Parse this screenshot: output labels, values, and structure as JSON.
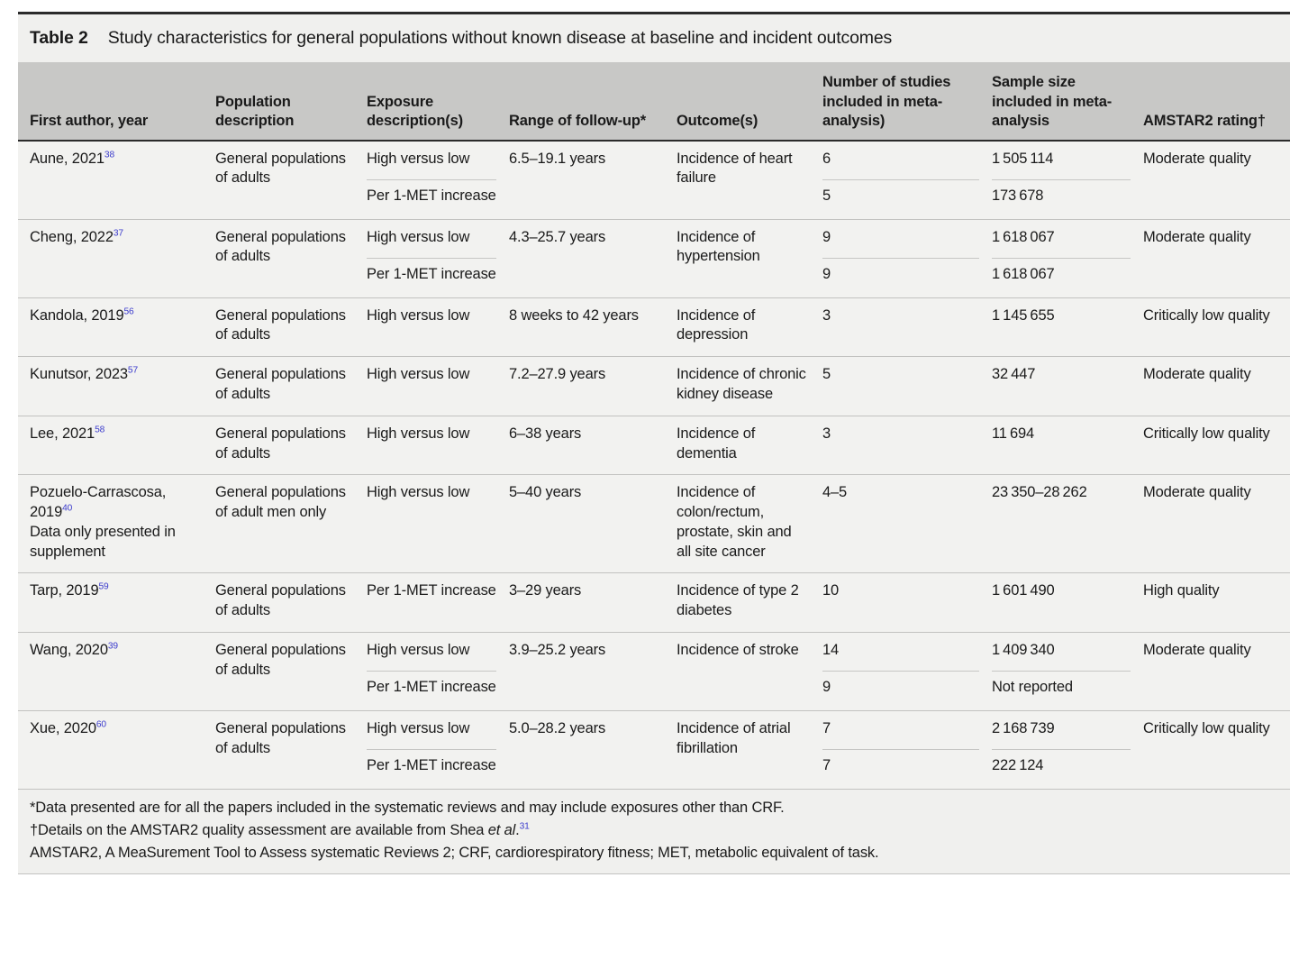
{
  "colors": {
    "text": "#1a1a1a",
    "reference_link": "#3c3ccc",
    "caption_background": "#f0f0ee",
    "header_background": "#c8c8c6",
    "row_background": "#f2f2f0"
  },
  "table": {
    "label": "Table 2",
    "title": "Study characteristics for general populations without known disease at baseline and incident outcomes",
    "columns": [
      "First author, year",
      "Population description",
      "Exposure description(s)",
      "Range of follow-up*",
      "Outcome(s)",
      "Number of studies included in meta-analysis)",
      "Sample size included in meta-analysis",
      "AMSTAR2 rating†"
    ],
    "rows": [
      {
        "author": "Aune, 2021",
        "ref": "38",
        "note": "",
        "population": "General populations of adults",
        "followup": "6.5–19.1 years",
        "outcome": "Incidence of heart failure",
        "rating": "Moderate quality",
        "entries": [
          {
            "exposure": "High versus low",
            "studies": "6",
            "sample": "1 505 114"
          },
          {
            "exposure": "Per 1-MET increase",
            "studies": "5",
            "sample": "173 678"
          }
        ]
      },
      {
        "author": "Cheng, 2022",
        "ref": "37",
        "note": "",
        "population": "General populations of adults",
        "followup": "4.3–25.7 years",
        "outcome": "Incidence of hypertension",
        "rating": "Moderate quality",
        "entries": [
          {
            "exposure": "High versus low",
            "studies": "9",
            "sample": "1 618 067"
          },
          {
            "exposure": "Per 1-MET increase",
            "studies": "9",
            "sample": "1 618 067"
          }
        ]
      },
      {
        "author": "Kandola, 2019",
        "ref": "56",
        "note": "",
        "population": "General populations of adults",
        "followup": "8 weeks to 42 years",
        "outcome": "Incidence of depression",
        "rating": "Critically low quality",
        "entries": [
          {
            "exposure": "High versus low",
            "studies": "3",
            "sample": "1 145 655"
          }
        ]
      },
      {
        "author": "Kunutsor, 2023",
        "ref": "57",
        "note": "",
        "population": "General populations of adults",
        "followup": "7.2–27.9 years",
        "outcome": "Incidence of chronic kidney disease",
        "rating": "Moderate quality",
        "entries": [
          {
            "exposure": "High versus low",
            "studies": "5",
            "sample": "32 447"
          }
        ]
      },
      {
        "author": "Lee, 2021",
        "ref": "58",
        "note": "",
        "population": "General populations of adults",
        "followup": "6–38 years",
        "outcome": "Incidence of dementia",
        "rating": "Critically low quality",
        "entries": [
          {
            "exposure": "High versus low",
            "studies": "3",
            "sample": "11 694"
          }
        ]
      },
      {
        "author": "Pozuelo-Carrascosa, 2019",
        "ref": "40",
        "note": "Data only presented in supplement",
        "population": "General populations of adult men only",
        "followup": "5–40 years",
        "outcome": "Incidence of colon/rectum, prostate, skin and all site cancer",
        "rating": "Moderate quality",
        "entries": [
          {
            "exposure": "High versus low",
            "studies": "4–5",
            "sample": "23 350–28 262"
          }
        ]
      },
      {
        "author": "Tarp, 2019",
        "ref": "59",
        "note": "",
        "population": "General populations of adults",
        "followup": "3–29 years",
        "outcome": "Incidence of type 2 diabetes",
        "rating": "High quality",
        "entries": [
          {
            "exposure": "Per 1-MET increase",
            "studies": "10",
            "sample": "1 601 490"
          }
        ]
      },
      {
        "author": "Wang, 2020",
        "ref": "39",
        "note": "",
        "population": "General populations of adults",
        "followup": "3.9–25.2 years",
        "outcome": "Incidence of stroke",
        "rating": "Moderate quality",
        "entries": [
          {
            "exposure": "High versus low",
            "studies": "14",
            "sample": "1 409 340"
          },
          {
            "exposure": "Per 1-MET increase",
            "studies": "9",
            "sample": "Not reported"
          }
        ]
      },
      {
        "author": "Xue, 2020",
        "ref": "60",
        "note": "",
        "population": "General populations of adults",
        "followup": "5.0–28.2 years",
        "outcome": "Incidence of atrial fibrillation",
        "rating": "Critically low quality",
        "entries": [
          {
            "exposure": "High versus low",
            "studies": "7",
            "sample": "2 168 739"
          },
          {
            "exposure": "Per 1-MET increase",
            "studies": "7",
            "sample": "222 124"
          }
        ]
      }
    ],
    "footnotes": {
      "line1": "*Data presented are for all the papers included in the systematic reviews and may include exposures other than CRF.",
      "line2_prefix": "†Details on the AMSTAR2 quality assessment are available from Shea ",
      "line2_italic": "et al",
      "line2_suffix": ".",
      "line2_ref": "31",
      "line3": "AMSTAR2, A MeaSurement Tool to Assess systematic Reviews 2; CRF, cardiorespiratory fitness; MET, metabolic equivalent of task."
    }
  }
}
